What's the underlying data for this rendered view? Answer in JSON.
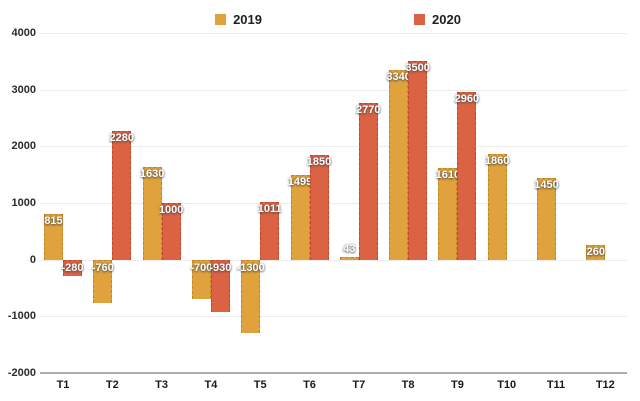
{
  "legend": {
    "items": [
      {
        "label": "2019",
        "color": "#DFA23C"
      },
      {
        "label": "2020",
        "color": "#DB6344"
      }
    ]
  },
  "chart_data": {
    "type": "bar",
    "title": "",
    "xlabel": "",
    "ylabel": "",
    "categories": [
      "T1",
      "T2",
      "T3",
      "T4",
      "T5",
      "T6",
      "T7",
      "T8",
      "T9",
      "T10",
      "T11",
      "T12"
    ],
    "series": [
      {
        "name": "2019",
        "color": "#DFA23C",
        "border_color": "#c08627",
        "values": [
          815,
          -760,
          1630,
          -700,
          -1300,
          1499,
          43,
          3340,
          1610,
          1860,
          1450,
          260
        ]
      },
      {
        "name": "2020",
        "color": "#DB6344",
        "border_color": "#bb4a2e",
        "values": [
          -280,
          2280,
          1000,
          -930,
          1011,
          1850,
          2770,
          3500,
          2960,
          null,
          null,
          null
        ]
      }
    ],
    "ylim": [
      -2000,
      4000
    ],
    "y_ticks": [
      4000,
      3000,
      2000,
      1000,
      0,
      -1000,
      -2000
    ],
    "grid": true,
    "legend_position": "top",
    "data_labels": true
  }
}
